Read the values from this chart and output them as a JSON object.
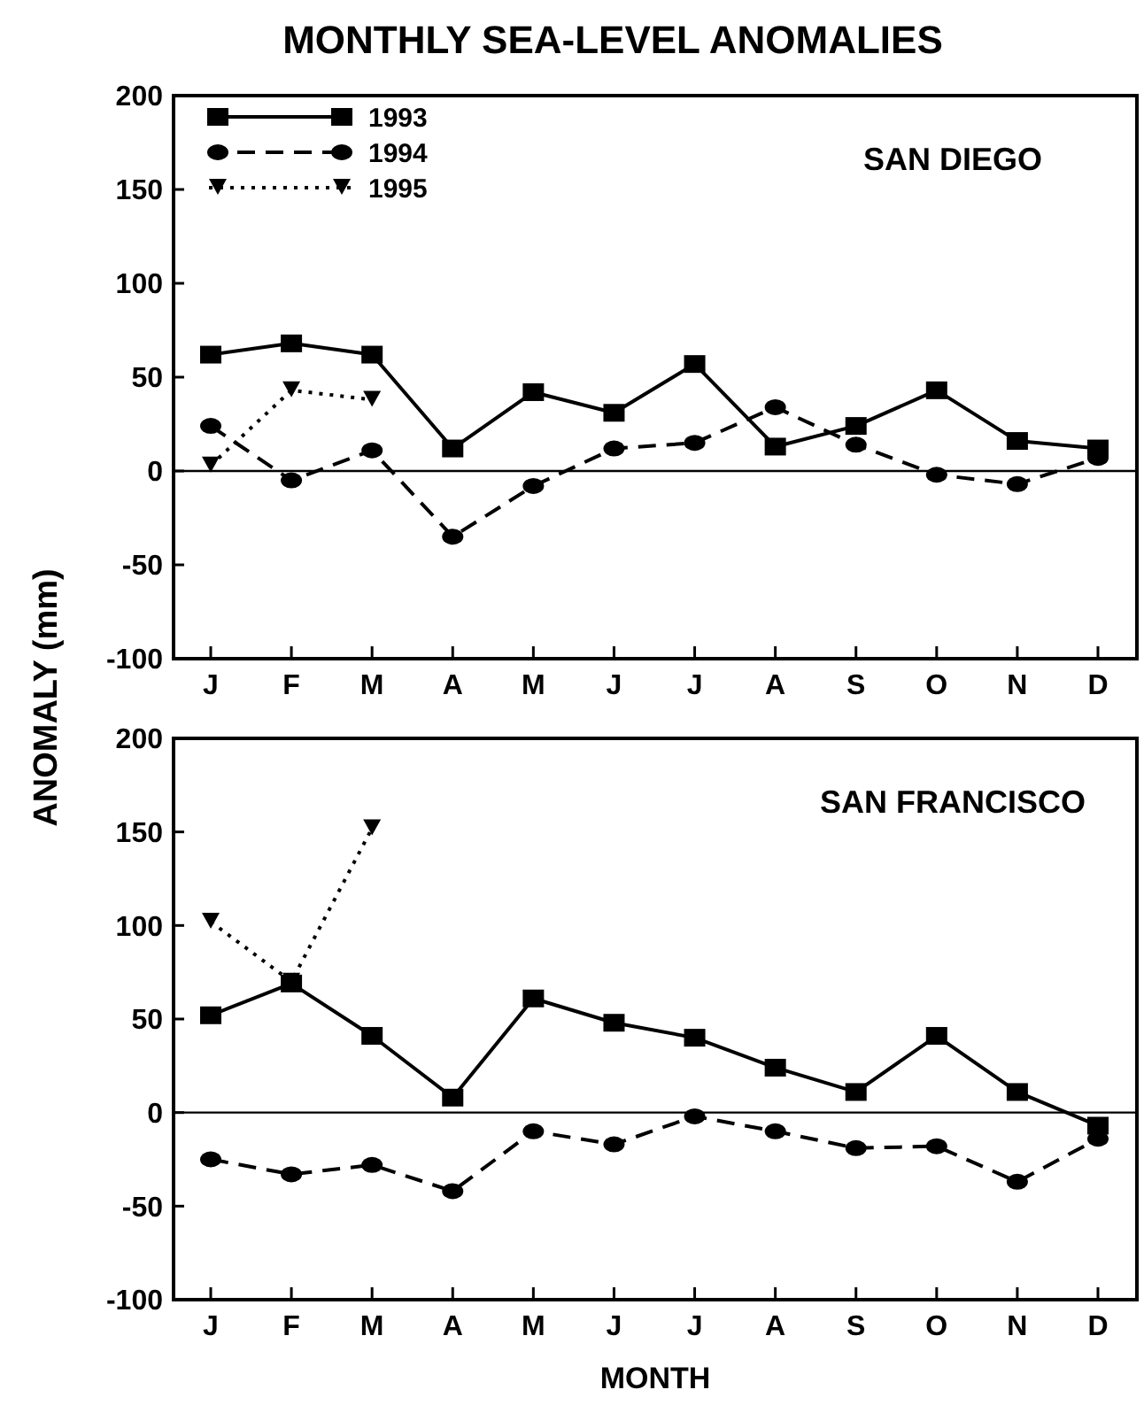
{
  "chart_data": [
    {
      "type": "line",
      "title": "MONTHLY SEA-LEVEL ANOMALIES",
      "ylabel": "ANOMALY (mm)",
      "categories": [
        "J",
        "F",
        "M",
        "A",
        "M",
        "J",
        "J",
        "A",
        "S",
        "O",
        "N",
        "D"
      ],
      "ylim": [
        -100,
        200
      ],
      "yticks": [
        -100,
        -50,
        0,
        50,
        100,
        150,
        200
      ],
      "ref_lines": [
        {
          "axis": "y",
          "value": 0
        }
      ],
      "annotations": [
        "SAN DIEGO"
      ],
      "legend": "top left",
      "grid": false,
      "series": [
        {
          "name": "1993",
          "color": "#000000",
          "marker": "square",
          "line_style": "solid",
          "values": [
            62,
            68,
            62,
            12,
            42,
            31,
            57,
            13,
            24,
            43,
            16,
            12
          ]
        },
        {
          "name": "1994",
          "color": "#000000",
          "marker": "circle",
          "line_style": "dashed",
          "values": [
            24,
            -5,
            11,
            -35,
            -8,
            12,
            15,
            34,
            14,
            -2,
            -7,
            7
          ]
        },
        {
          "name": "1995",
          "color": "#000000",
          "marker": "triangle",
          "line_style": "dotted",
          "values": [
            3,
            43,
            38,
            null,
            null,
            null,
            null,
            null,
            null,
            null,
            null,
            null
          ]
        }
      ]
    },
    {
      "type": "line",
      "xlabel": "MONTH",
      "categories": [
        "J",
        "F",
        "M",
        "A",
        "M",
        "J",
        "J",
        "A",
        "S",
        "O",
        "N",
        "D"
      ],
      "ylim": [
        -100,
        200
      ],
      "yticks": [
        -100,
        -50,
        0,
        50,
        100,
        150,
        200
      ],
      "ref_lines": [
        {
          "axis": "y",
          "value": 0
        }
      ],
      "annotations": [
        "SAN FRANCISCO"
      ],
      "legend": false,
      "grid": false,
      "series": [
        {
          "color": "#000000",
          "marker": "square",
          "line_style": "solid",
          "values": [
            52,
            69,
            41,
            8,
            61,
            48,
            40,
            24,
            11,
            41,
            11,
            -7
          ]
        },
        {
          "color": "#000000",
          "marker": "circle",
          "line_style": "dashed",
          "values": [
            -25,
            -33,
            -28,
            -42,
            -10,
            -17,
            -2,
            -10,
            -19,
            -18,
            -37,
            -14
          ]
        },
        {
          "color": "#000000",
          "marker": "triangle",
          "line_style": "dotted",
          "values": [
            102,
            70,
            152,
            null,
            null,
            null,
            null,
            null,
            null,
            null,
            null,
            null
          ]
        }
      ]
    }
  ]
}
